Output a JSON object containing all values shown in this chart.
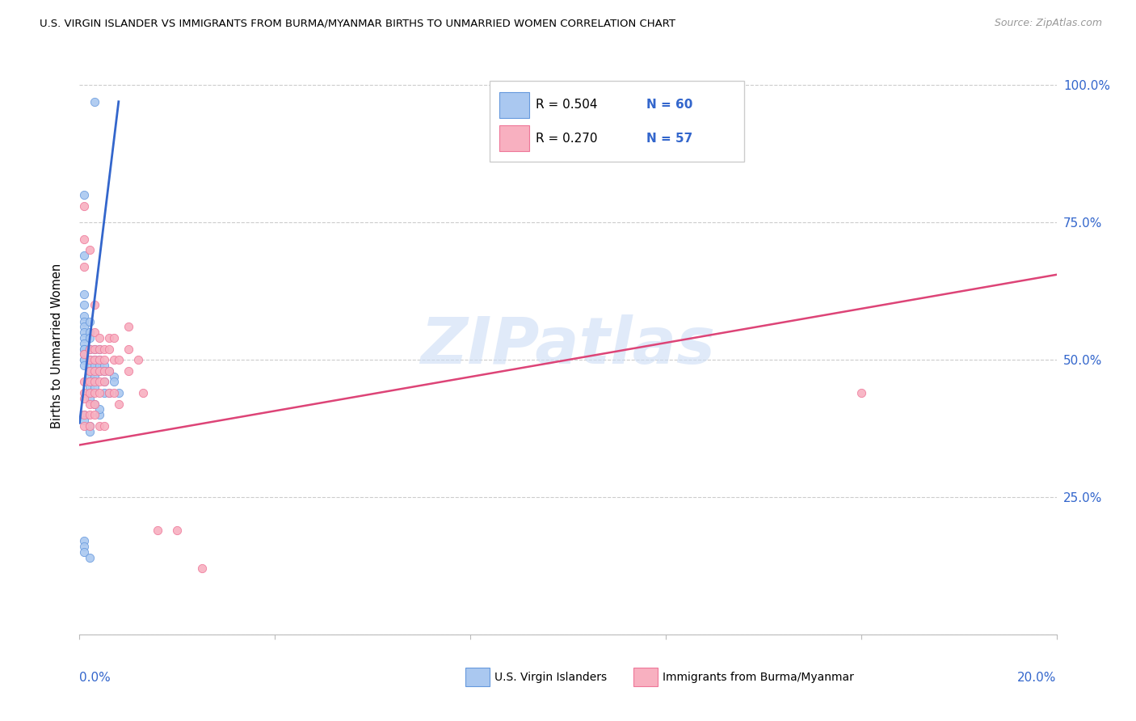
{
  "title": "U.S. VIRGIN ISLANDER VS IMMIGRANTS FROM BURMA/MYANMAR BIRTHS TO UNMARRIED WOMEN CORRELATION CHART",
  "source": "Source: ZipAtlas.com",
  "ylabel_label": "Births to Unmarried Women",
  "ytick_vals": [
    0.0,
    0.25,
    0.5,
    0.75,
    1.0
  ],
  "ytick_labels_right": [
    "",
    "25.0%",
    "50.0%",
    "75.0%",
    "100.0%"
  ],
  "blue_R": 0.504,
  "blue_N": 60,
  "pink_R": 0.27,
  "pink_N": 57,
  "blue_color": "#aac8f0",
  "pink_color": "#f8b0c0",
  "blue_edge_color": "#6699dd",
  "pink_edge_color": "#ee7799",
  "blue_line_color": "#3366cc",
  "pink_line_color": "#dd4477",
  "accent_blue": "#3366cc",
  "watermark": "ZIPatlas",
  "xmin": 0.0,
  "xmax": 0.2,
  "ymin": 0.0,
  "ymax": 1.05,
  "blue_scatter_x": [
    0.003,
    0.001,
    0.001,
    0.001,
    0.001,
    0.001,
    0.001,
    0.001,
    0.001,
    0.001,
    0.001,
    0.001,
    0.001,
    0.001,
    0.001,
    0.001,
    0.001,
    0.002,
    0.002,
    0.002,
    0.002,
    0.002,
    0.002,
    0.002,
    0.002,
    0.002,
    0.002,
    0.002,
    0.002,
    0.003,
    0.003,
    0.003,
    0.003,
    0.003,
    0.003,
    0.003,
    0.004,
    0.004,
    0.004,
    0.004,
    0.004,
    0.005,
    0.005,
    0.005,
    0.005,
    0.006,
    0.006,
    0.007,
    0.007,
    0.008,
    0.001,
    0.001,
    0.002,
    0.002,
    0.001,
    0.001,
    0.001,
    0.002,
    0.003,
    0.004
  ],
  "blue_scatter_y": [
    0.97,
    0.8,
    0.69,
    0.62,
    0.6,
    0.58,
    0.57,
    0.56,
    0.55,
    0.54,
    0.53,
    0.52,
    0.52,
    0.51,
    0.5,
    0.5,
    0.49,
    0.57,
    0.55,
    0.54,
    0.52,
    0.5,
    0.49,
    0.48,
    0.47,
    0.46,
    0.45,
    0.44,
    0.43,
    0.52,
    0.5,
    0.49,
    0.48,
    0.47,
    0.46,
    0.45,
    0.52,
    0.5,
    0.49,
    0.48,
    0.4,
    0.49,
    0.48,
    0.46,
    0.44,
    0.48,
    0.44,
    0.47,
    0.46,
    0.44,
    0.4,
    0.39,
    0.38,
    0.37,
    0.17,
    0.16,
    0.15,
    0.14,
    0.42,
    0.41
  ],
  "pink_scatter_x": [
    0.001,
    0.001,
    0.001,
    0.001,
    0.001,
    0.001,
    0.001,
    0.001,
    0.001,
    0.002,
    0.002,
    0.002,
    0.002,
    0.002,
    0.002,
    0.002,
    0.002,
    0.002,
    0.003,
    0.003,
    0.003,
    0.003,
    0.003,
    0.003,
    0.003,
    0.003,
    0.003,
    0.004,
    0.004,
    0.004,
    0.004,
    0.004,
    0.004,
    0.004,
    0.005,
    0.005,
    0.005,
    0.005,
    0.005,
    0.006,
    0.006,
    0.006,
    0.006,
    0.007,
    0.007,
    0.007,
    0.008,
    0.008,
    0.01,
    0.01,
    0.01,
    0.012,
    0.013,
    0.016,
    0.02,
    0.025,
    0.16
  ],
  "pink_scatter_y": [
    0.78,
    0.72,
    0.67,
    0.51,
    0.46,
    0.44,
    0.43,
    0.4,
    0.38,
    0.7,
    0.52,
    0.5,
    0.48,
    0.46,
    0.44,
    0.42,
    0.4,
    0.38,
    0.6,
    0.55,
    0.52,
    0.5,
    0.48,
    0.46,
    0.44,
    0.42,
    0.4,
    0.54,
    0.52,
    0.5,
    0.48,
    0.46,
    0.44,
    0.38,
    0.52,
    0.5,
    0.48,
    0.46,
    0.38,
    0.54,
    0.52,
    0.48,
    0.44,
    0.54,
    0.5,
    0.44,
    0.5,
    0.42,
    0.56,
    0.52,
    0.48,
    0.5,
    0.44,
    0.19,
    0.19,
    0.12,
    0.44
  ],
  "blue_trend_x": [
    0.0,
    0.008
  ],
  "blue_trend_y": [
    0.385,
    0.97
  ],
  "pink_trend_x": [
    0.0,
    0.2
  ],
  "pink_trend_y": [
    0.345,
    0.655
  ],
  "legend_label_blue": "U.S. Virgin Islanders",
  "legend_label_pink": "Immigrants from Burma/Myanmar"
}
